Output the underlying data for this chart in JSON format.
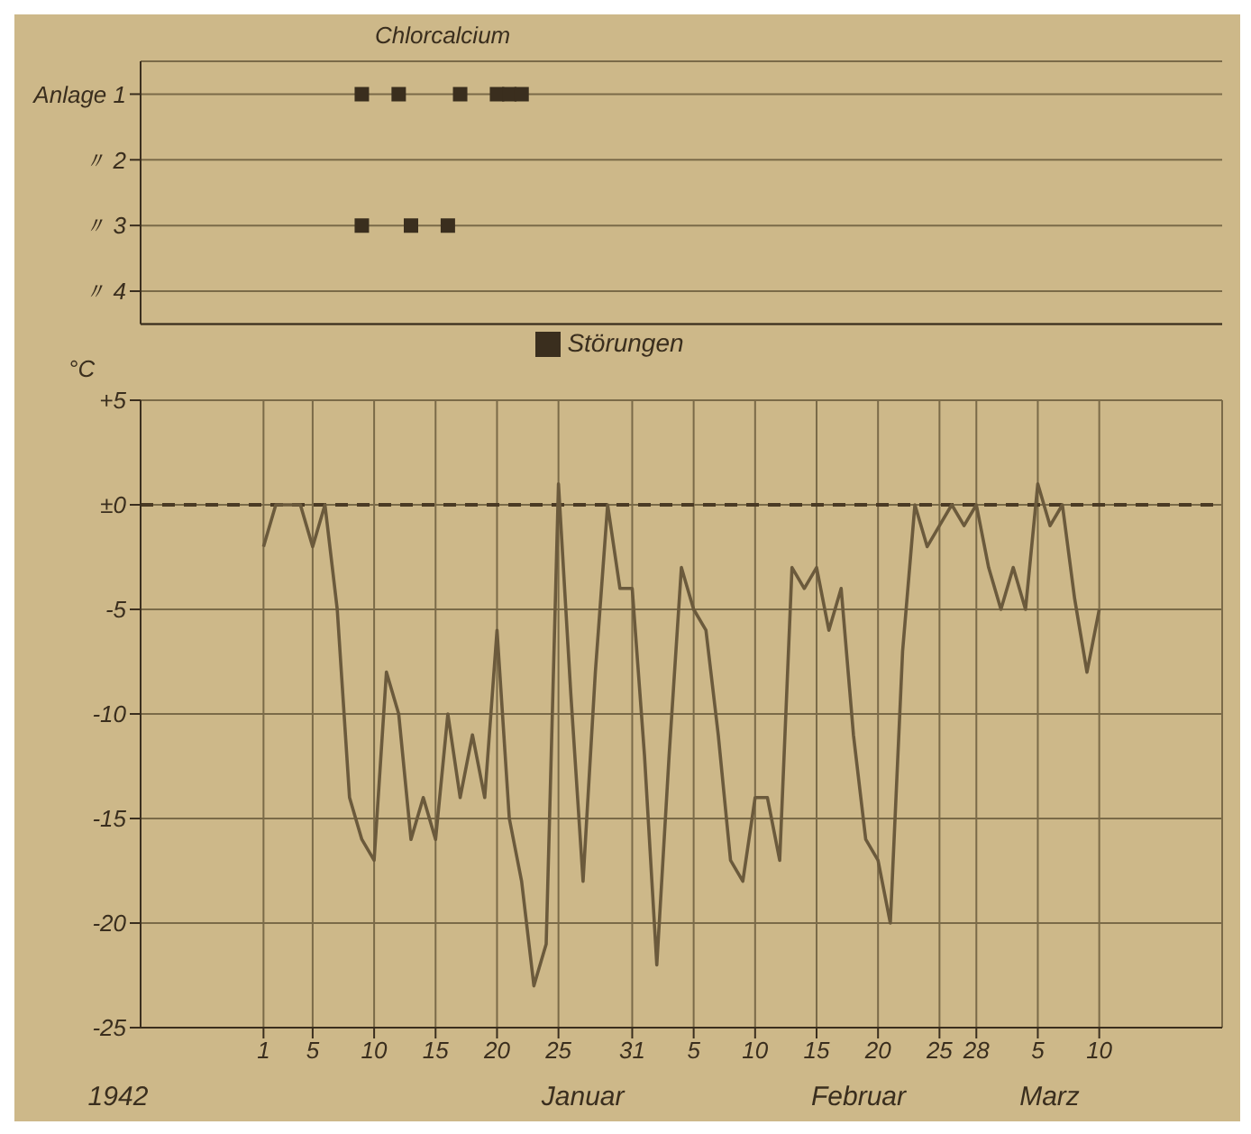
{
  "chart_data": [
    {
      "type": "scatter",
      "annotations": [
        "Chlorcalcium"
      ],
      "xlim": [
        "1941-12-22",
        "1942-03-20"
      ],
      "ylim": [
        4.5,
        0.5
      ],
      "yticks": [
        {
          "value": 1,
          "label": "Anlage 1"
        },
        {
          "value": 2,
          "label": "〃 2"
        },
        {
          "value": 3,
          "label": "〃 3"
        },
        {
          "value": 4,
          "label": "〃 4"
        }
      ],
      "tick_labels": "y",
      "grid": "y",
      "marker": "square",
      "legend": "bottom",
      "series": [
        {
          "name": "Störungen",
          "color": "#3a2e1e",
          "x": [
            "1942-01-09",
            "1942-01-12",
            "1942-01-17",
            "1942-01-20",
            "1942-01-21",
            "1942-01-22",
            "1942-01-09",
            "1942-01-13",
            "1942-01-16"
          ],
          "values": [
            1,
            1,
            1,
            1,
            1,
            1,
            3,
            3,
            3
          ]
        }
      ]
    },
    {
      "type": "line",
      "ylabel": "°C",
      "annotations": [
        "1942",
        "Januar",
        "Februar",
        "Marz"
      ],
      "xlim": [
        "1941-12-22",
        "1942-03-20"
      ],
      "ylim": [
        -25,
        5
      ],
      "xticks": [
        {
          "value": "1942-01-01",
          "label": "1"
        },
        {
          "value": "1942-01-05",
          "label": "5"
        },
        {
          "value": "1942-01-10",
          "label": "10"
        },
        {
          "value": "1942-01-15",
          "label": "15"
        },
        {
          "value": "1942-01-20",
          "label": "20"
        },
        {
          "value": "1942-01-25",
          "label": "25"
        },
        {
          "value": "1942-01-31",
          "label": "31"
        },
        {
          "value": "1942-02-05",
          "label": "5"
        },
        {
          "value": "1942-02-10",
          "label": "10"
        },
        {
          "value": "1942-02-15",
          "label": "15"
        },
        {
          "value": "1942-02-20",
          "label": "20"
        },
        {
          "value": "1942-02-25",
          "label": "25"
        },
        {
          "value": "1942-02-28",
          "label": "28"
        },
        {
          "value": "1942-03-05",
          "label": "5"
        },
        {
          "value": "1942-03-10",
          "label": "10"
        }
      ],
      "yticks": [
        {
          "value": 5,
          "label": "+5"
        },
        {
          "value": 0,
          "label": "±0"
        },
        -5,
        -10,
        -15,
        -20,
        -25
      ],
      "grid": true,
      "line_style": "solid",
      "ref_lines": [
        {
          "axis": "y",
          "value": 0,
          "line_style": "dashed",
          "color": "#4a3a24"
        }
      ],
      "series": [
        {
          "color": "#6b5a3c",
          "x": [
            "1942-01-01",
            "1942-01-02",
            "1942-01-03",
            "1942-01-04",
            "1942-01-05",
            "1942-01-06",
            "1942-01-07",
            "1942-01-08",
            "1942-01-09",
            "1942-01-10",
            "1942-01-11",
            "1942-01-12",
            "1942-01-13",
            "1942-01-14",
            "1942-01-15",
            "1942-01-16",
            "1942-01-17",
            "1942-01-18",
            "1942-01-19",
            "1942-01-20",
            "1942-01-21",
            "1942-01-22",
            "1942-01-23",
            "1942-01-24",
            "1942-01-25",
            "1942-01-26",
            "1942-01-27",
            "1942-01-28",
            "1942-01-29",
            "1942-01-30",
            "1942-01-31",
            "1942-02-01",
            "1942-02-02",
            "1942-02-03",
            "1942-02-04",
            "1942-02-05",
            "1942-02-06",
            "1942-02-07",
            "1942-02-08",
            "1942-02-09",
            "1942-02-10",
            "1942-02-11",
            "1942-02-12",
            "1942-02-13",
            "1942-02-14",
            "1942-02-15",
            "1942-02-16",
            "1942-02-17",
            "1942-02-18",
            "1942-02-19",
            "1942-02-20",
            "1942-02-21",
            "1942-02-22",
            "1942-02-23",
            "1942-02-24",
            "1942-02-25",
            "1942-02-26",
            "1942-02-27",
            "1942-02-28",
            "1942-03-01",
            "1942-03-02",
            "1942-03-03",
            "1942-03-04",
            "1942-03-05",
            "1942-03-06",
            "1942-03-07",
            "1942-03-08",
            "1942-03-09",
            "1942-03-10"
          ],
          "values": [
            -2,
            0,
            0,
            0,
            -2,
            0,
            -5,
            -14,
            -16,
            -17,
            -8,
            -10,
            -16,
            -14,
            -16,
            -10,
            -14,
            -11,
            -14,
            -6,
            -15,
            -18,
            -23,
            -21,
            1,
            -9,
            -18,
            -8,
            0,
            -4,
            -4,
            -12,
            -22,
            -12,
            -3,
            -5,
            -6,
            -11,
            -17,
            -18,
            -14,
            -14,
            -17,
            -3,
            -4,
            -3,
            -6,
            -4,
            -11,
            -16,
            -17,
            -20,
            -7,
            0,
            -2,
            -1,
            0,
            -1,
            0,
            -3,
            -5,
            -3,
            -5,
            1,
            -1,
            0,
            -4.5,
            -8,
            -5
          ]
        }
      ]
    }
  ]
}
